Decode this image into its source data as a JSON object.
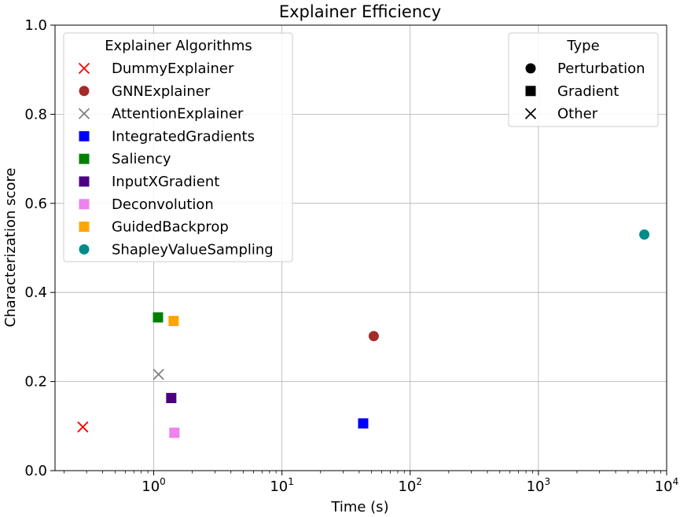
{
  "chart_data": {
    "type": "scatter",
    "title": "Explainer Efficiency",
    "xlabel": "Time (s)",
    "ylabel": "Characterization score",
    "xscale": "log",
    "xlim": [
      0.17,
      10000
    ],
    "ylim": [
      0,
      1.0
    ],
    "x_ticks": [
      {
        "value": 1,
        "base": "10",
        "exp": "0"
      },
      {
        "value": 10,
        "base": "10",
        "exp": "1"
      },
      {
        "value": 100,
        "base": "10",
        "exp": "2"
      },
      {
        "value": 1000,
        "base": "10",
        "exp": "3"
      },
      {
        "value": 10000,
        "base": "10",
        "exp": "4"
      }
    ],
    "y_ticks": [
      {
        "value": 0.0,
        "label": "0.0"
      },
      {
        "value": 0.2,
        "label": "0.2"
      },
      {
        "value": 0.4,
        "label": "0.4"
      },
      {
        "value": 0.6,
        "label": "0.6"
      },
      {
        "value": 0.8,
        "label": "0.8"
      },
      {
        "value": 1.0,
        "label": "1.0"
      }
    ],
    "grid": true,
    "series": [
      {
        "name": "DummyExplainer",
        "marker": "x",
        "color": "#ff0000",
        "x": 0.28,
        "y": 0.098
      },
      {
        "name": "GNNExplainer",
        "marker": "circle",
        "color": "#a52a2a",
        "x": 52,
        "y": 0.302
      },
      {
        "name": "AttentionExplainer",
        "marker": "x",
        "color": "#808080",
        "x": 1.09,
        "y": 0.216
      },
      {
        "name": "IntegratedGradients",
        "marker": "square",
        "color": "#0000ff",
        "x": 43,
        "y": 0.106
      },
      {
        "name": "Saliency",
        "marker": "square",
        "color": "#008000",
        "x": 1.08,
        "y": 0.344
      },
      {
        "name": "InputXGradient",
        "marker": "square",
        "color": "#4b0082",
        "x": 1.37,
        "y": 0.163
      },
      {
        "name": "Deconvolution",
        "marker": "square",
        "color": "#ee82ee",
        "x": 1.45,
        "y": 0.085
      },
      {
        "name": "GuidedBackprop",
        "marker": "square",
        "color": "#ffa500",
        "x": 1.43,
        "y": 0.336
      },
      {
        "name": "ShapleyValueSampling",
        "marker": "circle",
        "color": "#008b8b",
        "x": 6700,
        "y": 0.53
      }
    ],
    "legend_algorithms": {
      "title": "Explainer Algorithms",
      "placement": "top-left"
    },
    "legend_type": {
      "title": "Type",
      "placement": "top-right",
      "items": [
        {
          "label": "Perturbation",
          "marker": "circle"
        },
        {
          "label": "Gradient",
          "marker": "square"
        },
        {
          "label": "Other",
          "marker": "x"
        }
      ]
    }
  }
}
